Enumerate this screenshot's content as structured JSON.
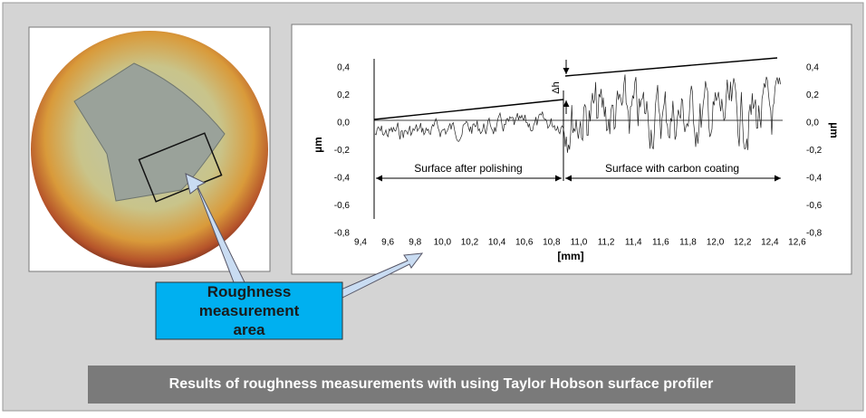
{
  "profile": {
    "x_label": "[mm]",
    "y_label_left": "µm",
    "y_label_right": "µm",
    "x_ticks": [
      "9,4",
      "9,6",
      "9,8",
      "10,0",
      "10,2",
      "10,4",
      "10,6",
      "10,8",
      "11,0",
      "11,2",
      "11,4",
      "11,6",
      "11,8",
      "12,0",
      "12,2",
      "12,4",
      "12,6"
    ],
    "y_ticks_left": [
      "0,4",
      "0,2",
      "0,0",
      "-0,2",
      "-0,4",
      "-0,6",
      "-0,8"
    ],
    "y_ticks_right": [
      "0,4",
      "0,2",
      "0,0",
      "-0,2",
      "-0,4",
      "-0,6",
      "-0,8"
    ],
    "delta_label": "Δh",
    "region_left": "Surface after polishing",
    "region_right": "Surface with carbon coating"
  },
  "callout": {
    "label": "Roughness measurement area"
  },
  "caption": "Results of roughness measurements with using Taylor Hobson surface profiler"
}
